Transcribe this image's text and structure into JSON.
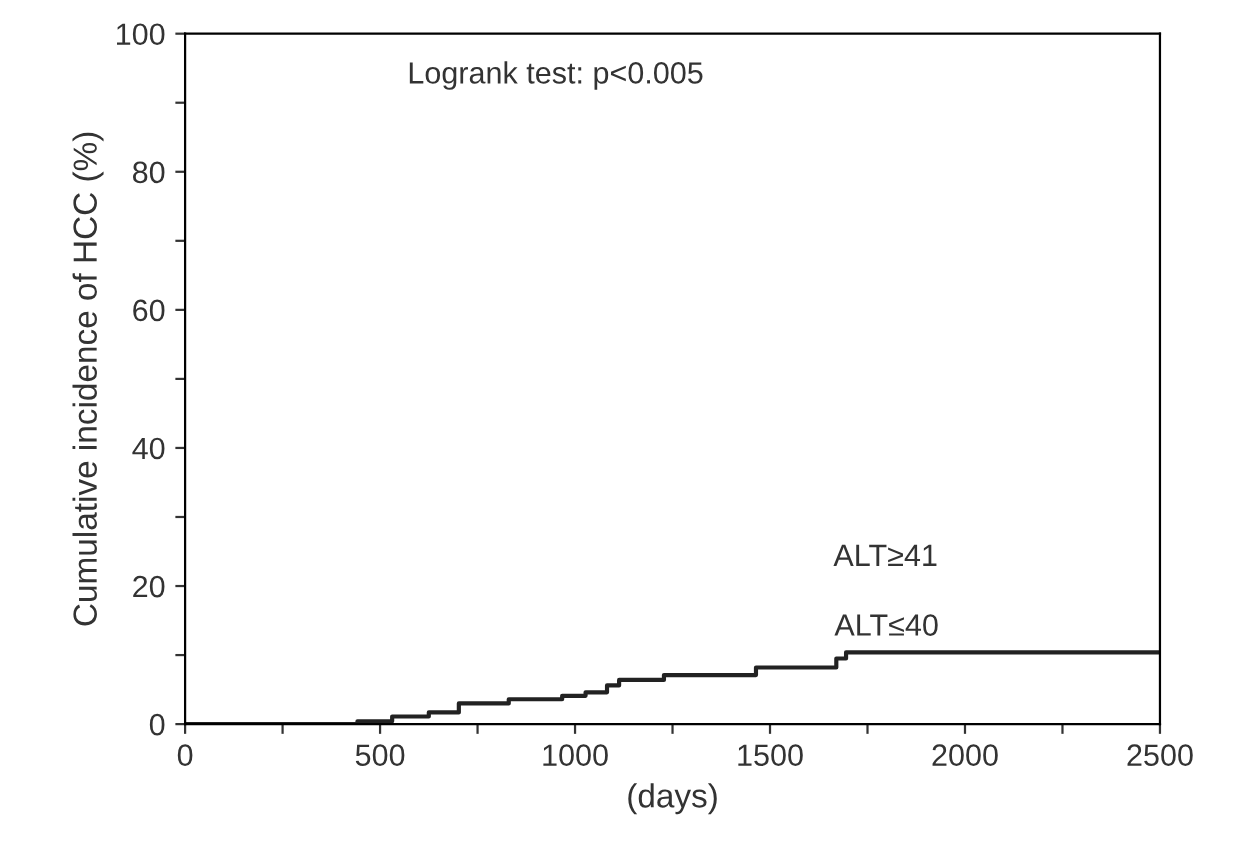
{
  "chart_data": {
    "type": "step",
    "xlabel": "(days)",
    "ylabel": "Cumulative incidence of HCC (%)",
    "annotations": [
      "Logrank test: p<0.005",
      "ALT≥41"
    ],
    "xlim": [
      0,
      2500
    ],
    "ylim": [
      0,
      100
    ],
    "xticks": [
      0,
      {
        "value": 250,
        "label": null
      },
      500,
      {
        "value": 750,
        "label": null
      },
      1000,
      {
        "value": 1250,
        "label": null
      },
      1500,
      {
        "value": 1750,
        "label": null
      },
      2000,
      {
        "value": 2250,
        "label": null
      },
      2500
    ],
    "yticks": [
      0,
      {
        "value": 10,
        "label": null
      },
      20,
      {
        "value": 30,
        "label": null
      },
      40,
      {
        "value": 50,
        "label": null
      },
      60,
      {
        "value": 70,
        "label": null
      },
      80,
      {
        "value": 90,
        "label": null
      },
      100
    ],
    "grid": false,
    "legend": false,
    "series": [
      {
        "name": "ALT≤40",
        "color": "#222222",
        "x": [
          0,
          442,
          531,
          625,
          702,
          830,
          967,
          1027,
          1082,
          1113,
          1228,
          1464,
          1670,
          1695,
          2500
        ],
        "values": [
          0,
          0.4,
          1.1,
          1.7,
          3.0,
          3.6,
          4.1,
          4.6,
          5.6,
          6.4,
          7.1,
          8.2,
          9.5,
          10.4,
          10.4
        ]
      }
    ]
  }
}
